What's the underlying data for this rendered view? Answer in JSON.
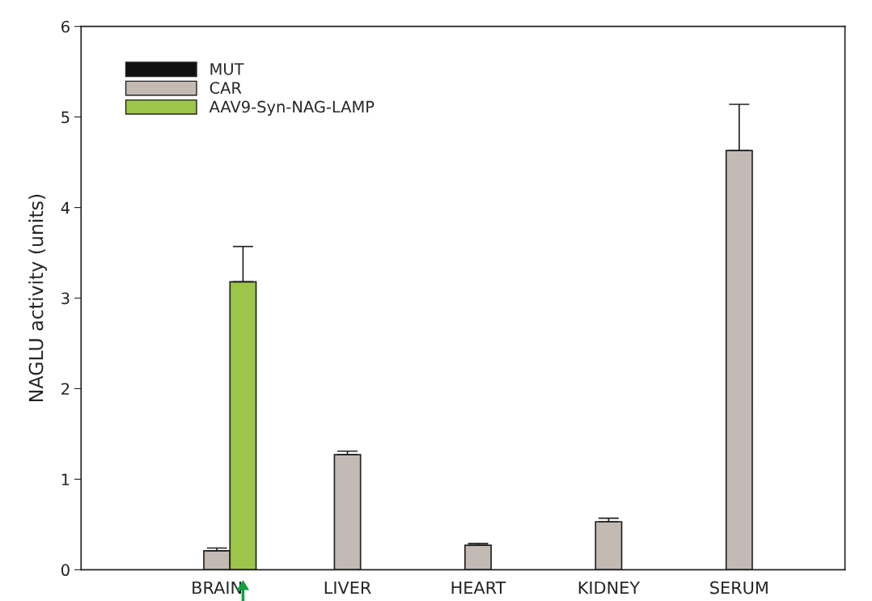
{
  "chart_data": {
    "type": "bar",
    "ylabel": "NAGLU activity (units)",
    "categories": [
      "BRAIN",
      "LIVER",
      "HEART",
      "KIDNEY",
      "SERUM"
    ],
    "series": [
      {
        "name": "MUT",
        "color": "#111111",
        "values": [
          null,
          null,
          null,
          null,
          null
        ]
      },
      {
        "name": "CAR",
        "color": "#c3bab3",
        "values": [
          0.21,
          1.27,
          0.27,
          0.53,
          4.63
        ],
        "errors": [
          [
            0.21,
            0.24
          ],
          [
            1.27,
            1.31
          ],
          [
            0.27,
            0.29
          ],
          [
            0.53,
            0.57
          ],
          [
            4.63,
            5.14
          ]
        ]
      },
      {
        "name": "AAV9-Syn-NAG-LAMP",
        "color": "#9dc54a",
        "values": [
          3.18,
          null,
          null,
          null,
          null
        ],
        "errors": [
          [
            3.18,
            3.57
          ],
          null,
          null,
          null,
          null
        ]
      }
    ],
    "ylim": [
      0,
      6
    ],
    "yticks": [
      0,
      1,
      2,
      3,
      4,
      5,
      6
    ],
    "grid": false,
    "legend": "top left"
  }
}
